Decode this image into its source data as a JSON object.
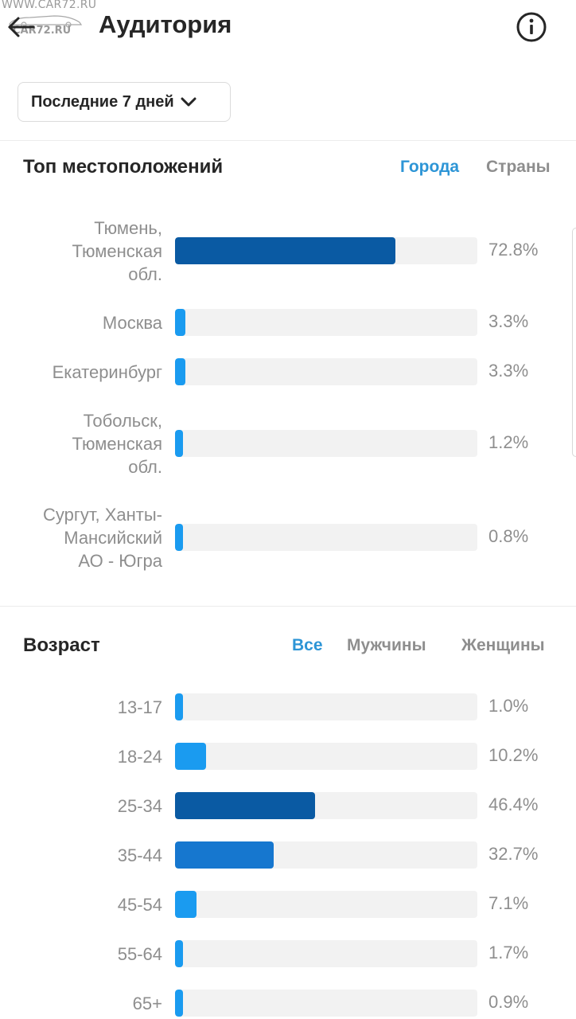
{
  "watermark": {
    "top": "WWW.CAR72.RU",
    "bottom": "CAR72.RU"
  },
  "header": {
    "back_icon": "arrow-left-icon",
    "title": "Аудитория",
    "info_icon": "info-circle-icon"
  },
  "filter": {
    "period": "Последние 7 дней",
    "chevron_icon": "chevron-down-icon"
  },
  "colors": {
    "accent": "#2d95d6",
    "bar_dark": "#0a5aa3",
    "bar_mid": "#1677cf",
    "bar_light": "#1a9bf0",
    "track": "#f2f2f2",
    "muted_text": "#8e8e8e"
  },
  "locations": {
    "title": "Топ местоположений",
    "tabs": [
      {
        "label": "Города",
        "active": true
      },
      {
        "label": "Страны",
        "active": false
      }
    ],
    "rows": [
      {
        "label": "Тюмень,\nТюменская\nобл.",
        "value": 72.8,
        "display": "72.8%"
      },
      {
        "label": "Москва",
        "value": 3.3,
        "display": "3.3%"
      },
      {
        "label": "Екатеринбург",
        "value": 3.3,
        "display": "3.3%"
      },
      {
        "label": "Тобольск,\nТюменская\nобл.",
        "value": 1.2,
        "display": "1.2%"
      },
      {
        "label": "Сургут, Ханты-\nМансийский\nАО - Югра",
        "value": 0.8,
        "display": "0.8%"
      }
    ]
  },
  "age": {
    "title": "Возраст",
    "tabs": [
      {
        "label": "Все",
        "active": true
      },
      {
        "label": "Мужчины",
        "active": false
      },
      {
        "label": "Женщины",
        "active": false
      }
    ],
    "rows": [
      {
        "label": "13-17",
        "value": 1.0,
        "display": "1.0%"
      },
      {
        "label": "18-24",
        "value": 10.2,
        "display": "10.2%"
      },
      {
        "label": "25-34",
        "value": 46.4,
        "display": "46.4%"
      },
      {
        "label": "35-44",
        "value": 32.7,
        "display": "32.7%"
      },
      {
        "label": "45-54",
        "value": 7.1,
        "display": "7.1%"
      },
      {
        "label": "55-64",
        "value": 1.7,
        "display": "1.7%"
      },
      {
        "label": "65+",
        "value": 0.9,
        "display": "0.9%"
      }
    ]
  }
}
